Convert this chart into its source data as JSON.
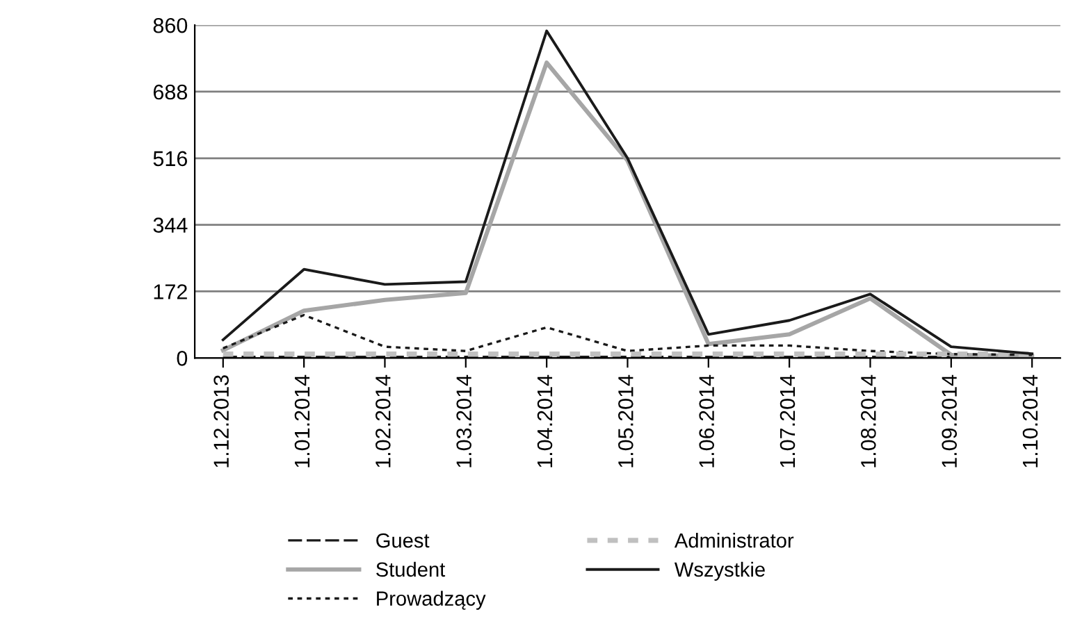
{
  "chart_data": {
    "type": "line",
    "categories": [
      "1.12.2013",
      "1.01.2014",
      "1.02.2014",
      "1.03.2014",
      "1.04.2014",
      "1.05.2014",
      "1.06.2014",
      "1.07.2014",
      "1.08.2014",
      "1.09.2014",
      "1.10.2014"
    ],
    "series": [
      {
        "name": "Guest",
        "color": "#1a1a1a",
        "line_style": "dashed",
        "values": [
          3,
          3,
          3,
          3,
          3,
          3,
          3,
          3,
          3,
          3,
          3
        ]
      },
      {
        "name": "Student",
        "color": "#a6a6a6",
        "line_style": "solid",
        "values": [
          20,
          122,
          150,
          168,
          763,
          510,
          36,
          61,
          154,
          8,
          5
        ]
      },
      {
        "name": "Prowadzący",
        "color": "#1a1a1a",
        "line_style": "dotted",
        "values": [
          25,
          111,
          29,
          18,
          79,
          18,
          32,
          32,
          18,
          10,
          8
        ]
      },
      {
        "name": "Administrator",
        "color": "#c0c0c0",
        "line_style": "dotted",
        "values": [
          10,
          10,
          10,
          10,
          10,
          10,
          10,
          10,
          10,
          10,
          10
        ]
      },
      {
        "name": "Wszystkie",
        "color": "#1a1a1a",
        "line_style": "solid",
        "values": [
          47,
          229,
          190,
          197,
          845,
          516,
          61,
          97,
          165,
          29,
          11
        ]
      }
    ],
    "ylim": [
      0,
      860
    ],
    "yticks": [
      0,
      172,
      344,
      516,
      688,
      860
    ],
    "grid": "y",
    "legend": "bottom"
  }
}
